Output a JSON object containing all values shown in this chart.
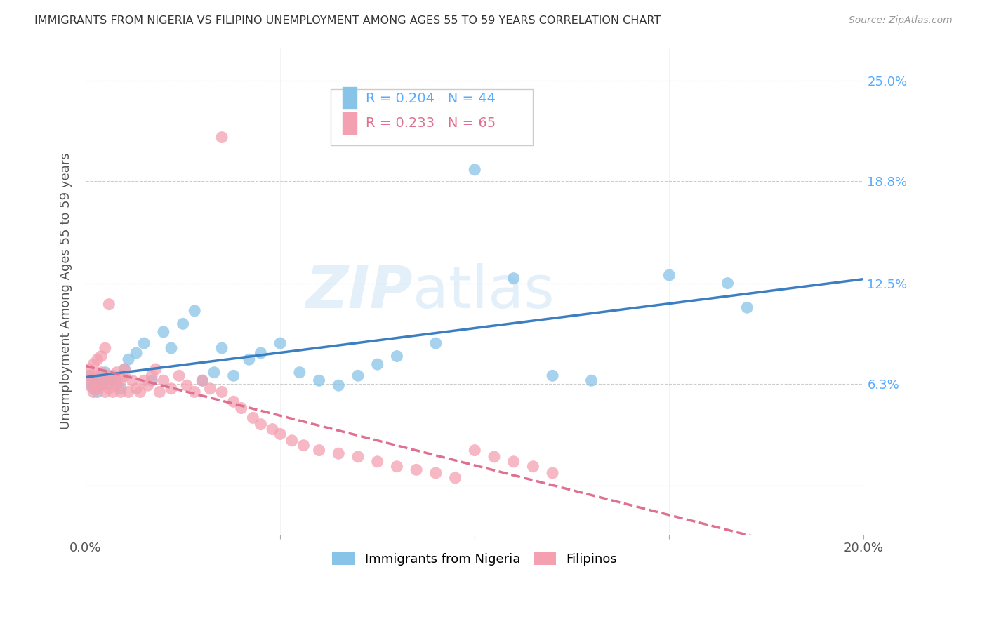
{
  "title": "IMMIGRANTS FROM NIGERIA VS FILIPINO UNEMPLOYMENT AMONG AGES 55 TO 59 YEARS CORRELATION CHART",
  "source": "Source: ZipAtlas.com",
  "ylabel": "Unemployment Among Ages 55 to 59 years",
  "xlabel_nigeria": "Immigrants from Nigeria",
  "xlabel_filipino": "Filipinos",
  "r_nigeria": 0.204,
  "n_nigeria": 44,
  "r_filipino": 0.233,
  "n_filipino": 65,
  "xlim": [
    0.0,
    0.2
  ],
  "ylim": [
    -0.03,
    0.27
  ],
  "ytick_positions": [
    0.0,
    0.063,
    0.125,
    0.188,
    0.25
  ],
  "ytick_labels_right": [
    "",
    "6.3%",
    "12.5%",
    "18.8%",
    "25.0%"
  ],
  "xtick_positions": [
    0.0,
    0.05,
    0.1,
    0.15,
    0.2
  ],
  "xtick_labels": [
    "0.0%",
    "",
    "",
    "",
    "20.0%"
  ],
  "color_nigeria": "#88c4e8",
  "color_filipino": "#f4a0b0",
  "line_color_nigeria": "#3a7fc1",
  "line_color_filipino": "#e07090",
  "watermark_zip": "ZIP",
  "watermark_atlas": "atlas",
  "nigeria_x": [
    0.001,
    0.001,
    0.002,
    0.002,
    0.003,
    0.003,
    0.004,
    0.004,
    0.005,
    0.005,
    0.006,
    0.007,
    0.008,
    0.009,
    0.01,
    0.011,
    0.013,
    0.015,
    0.017,
    0.02,
    0.022,
    0.025,
    0.028,
    0.03,
    0.033,
    0.035,
    0.038,
    0.042,
    0.045,
    0.05,
    0.055,
    0.06,
    0.065,
    0.07,
    0.075,
    0.08,
    0.09,
    0.1,
    0.11,
    0.12,
    0.13,
    0.15,
    0.165,
    0.17
  ],
  "nigeria_y": [
    0.063,
    0.068,
    0.06,
    0.065,
    0.058,
    0.063,
    0.062,
    0.068,
    0.065,
    0.07,
    0.063,
    0.068,
    0.065,
    0.06,
    0.072,
    0.078,
    0.082,
    0.088,
    0.065,
    0.095,
    0.085,
    0.1,
    0.108,
    0.065,
    0.07,
    0.085,
    0.068,
    0.078,
    0.082,
    0.088,
    0.07,
    0.065,
    0.062,
    0.068,
    0.075,
    0.08,
    0.088,
    0.195,
    0.128,
    0.068,
    0.065,
    0.13,
    0.125,
    0.11
  ],
  "filipino_x": [
    0.001,
    0.001,
    0.001,
    0.002,
    0.002,
    0.002,
    0.003,
    0.003,
    0.003,
    0.004,
    0.004,
    0.004,
    0.005,
    0.005,
    0.005,
    0.006,
    0.006,
    0.006,
    0.007,
    0.007,
    0.008,
    0.008,
    0.009,
    0.009,
    0.01,
    0.01,
    0.011,
    0.012,
    0.013,
    0.014,
    0.015,
    0.016,
    0.017,
    0.018,
    0.019,
    0.02,
    0.022,
    0.024,
    0.026,
    0.028,
    0.03,
    0.032,
    0.035,
    0.038,
    0.04,
    0.043,
    0.045,
    0.048,
    0.05,
    0.053,
    0.056,
    0.06,
    0.065,
    0.07,
    0.075,
    0.08,
    0.085,
    0.09,
    0.095,
    0.1,
    0.105,
    0.11,
    0.115,
    0.12,
    0.035
  ],
  "filipino_y": [
    0.062,
    0.068,
    0.072,
    0.058,
    0.065,
    0.075,
    0.06,
    0.068,
    0.078,
    0.062,
    0.07,
    0.08,
    0.058,
    0.065,
    0.085,
    0.06,
    0.068,
    0.112,
    0.058,
    0.065,
    0.062,
    0.07,
    0.058,
    0.065,
    0.068,
    0.072,
    0.058,
    0.065,
    0.06,
    0.058,
    0.065,
    0.062,
    0.068,
    0.072,
    0.058,
    0.065,
    0.06,
    0.068,
    0.062,
    0.058,
    0.065,
    0.06,
    0.058,
    0.052,
    0.048,
    0.042,
    0.038,
    0.035,
    0.032,
    0.028,
    0.025,
    0.022,
    0.02,
    0.018,
    0.015,
    0.012,
    0.01,
    0.008,
    0.005,
    0.022,
    0.018,
    0.015,
    0.012,
    0.008,
    0.215
  ]
}
